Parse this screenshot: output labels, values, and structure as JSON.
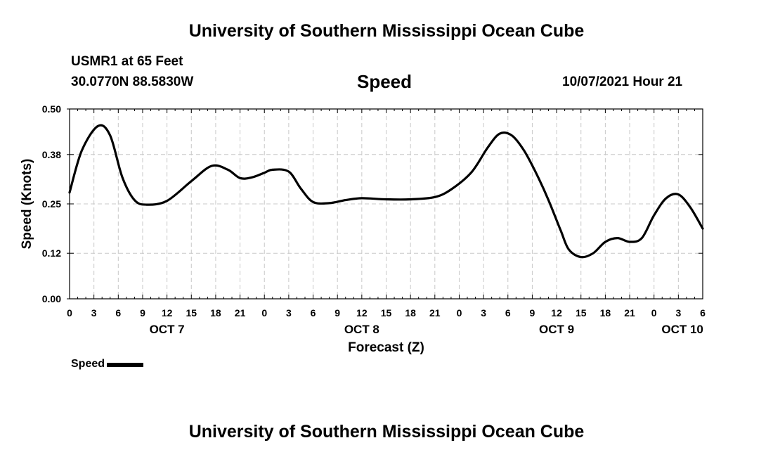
{
  "header": {
    "title": "University of Southern Mississippi Ocean Cube",
    "station": "USMR1 at 65 Feet",
    "coords": "30.0770N  88.5830W",
    "variable": "Speed",
    "timestamp": "10/07/2021 Hour 21"
  },
  "footer": {
    "title": "University of Southern Mississippi Ocean Cube"
  },
  "legend": {
    "label": "Speed"
  },
  "colors": {
    "line": "#000000",
    "grid": "#c8c8c8",
    "axis": "#000000"
  },
  "chart_data": {
    "type": "line",
    "title": "Speed",
    "xlabel": "Forecast (Z)",
    "ylabel": "Speed (Knots)",
    "xlim": [
      0,
      78
    ],
    "ylim": [
      0.0,
      0.5
    ],
    "yticks": [
      0.0,
      0.12,
      0.25,
      0.38,
      0.5
    ],
    "ytick_labels": [
      "0.00",
      "0.12",
      "0.25",
      "0.38",
      "0.50"
    ],
    "xticks": [
      0,
      3,
      6,
      9,
      12,
      15,
      18,
      21,
      24,
      27,
      30,
      33,
      36,
      39,
      42,
      45,
      48,
      51,
      54,
      57,
      60,
      63,
      66,
      69,
      72,
      75,
      78
    ],
    "xtick_labels": [
      "0",
      "3",
      "6",
      "9",
      "12",
      "15",
      "18",
      "21",
      "0",
      "3",
      "6",
      "9",
      "12",
      "15",
      "18",
      "21",
      "0",
      "3",
      "6",
      "9",
      "12",
      "15",
      "18",
      "21",
      "0",
      "3",
      "6"
    ],
    "date_labels": [
      {
        "hour": 12,
        "label": "OCT 7"
      },
      {
        "hour": 36,
        "label": "OCT 8"
      },
      {
        "hour": 60,
        "label": "OCT 9"
      },
      {
        "hour": 75.5,
        "label": "OCT 10"
      }
    ],
    "grid": true,
    "series": [
      {
        "name": "Speed",
        "x": [
          0,
          1.5,
          3.5,
          5,
          6.5,
          8,
          9.5,
          12,
          15,
          17.5,
          19.5,
          21,
          22.5,
          24,
          25,
          27,
          28.5,
          30,
          32,
          34,
          36,
          39,
          42,
          45,
          47,
          49.5,
          51.5,
          53,
          54.5,
          56,
          57.5,
          59,
          60.5,
          61.5,
          63,
          64.5,
          66,
          67.5,
          69,
          70.5,
          72,
          73.5,
          75,
          76.5,
          78
        ],
        "y": [
          0.28,
          0.39,
          0.455,
          0.43,
          0.32,
          0.26,
          0.248,
          0.258,
          0.31,
          0.35,
          0.34,
          0.318,
          0.32,
          0.332,
          0.34,
          0.335,
          0.29,
          0.255,
          0.252,
          0.26,
          0.265,
          0.262,
          0.262,
          0.268,
          0.288,
          0.333,
          0.398,
          0.435,
          0.43,
          0.39,
          0.33,
          0.26,
          0.18,
          0.13,
          0.11,
          0.12,
          0.15,
          0.16,
          0.15,
          0.16,
          0.22,
          0.265,
          0.275,
          0.24,
          0.185
        ]
      }
    ]
  }
}
